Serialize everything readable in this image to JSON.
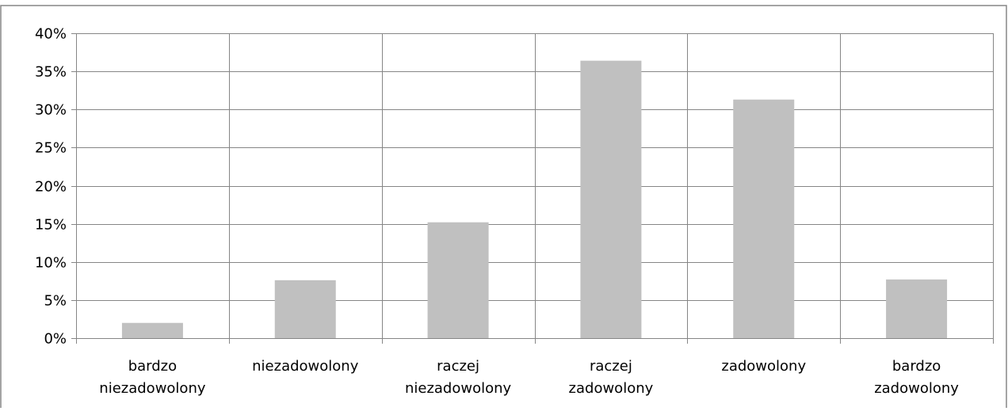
{
  "chart_data": {
    "type": "bar",
    "title": "",
    "xlabel": "",
    "ylabel": "",
    "categories": [
      [
        "bardzo",
        "niezadowolony"
      ],
      [
        "niezadowolony"
      ],
      [
        "raczej",
        "niezadowolony"
      ],
      [
        "raczej",
        "zadowolony"
      ],
      [
        "zadowolony"
      ],
      [
        "bardzo",
        "zadowolony"
      ]
    ],
    "values": [
      2.0,
      7.6,
      15.2,
      36.4,
      31.3,
      7.7
    ],
    "ylim": [
      0,
      40
    ],
    "yticks": [
      0,
      5,
      10,
      15,
      20,
      25,
      30,
      35,
      40
    ],
    "ytick_labels": [
      "0%",
      "5%",
      "10%",
      "15%",
      "20%",
      "25%",
      "30%",
      "35%",
      "40%"
    ],
    "grid": "horizontal and vertical category separators",
    "legend": "none",
    "colors": {
      "bar": "#c0c0c0",
      "grid": "#868686",
      "frame": "#868686",
      "text": "#000000"
    }
  }
}
